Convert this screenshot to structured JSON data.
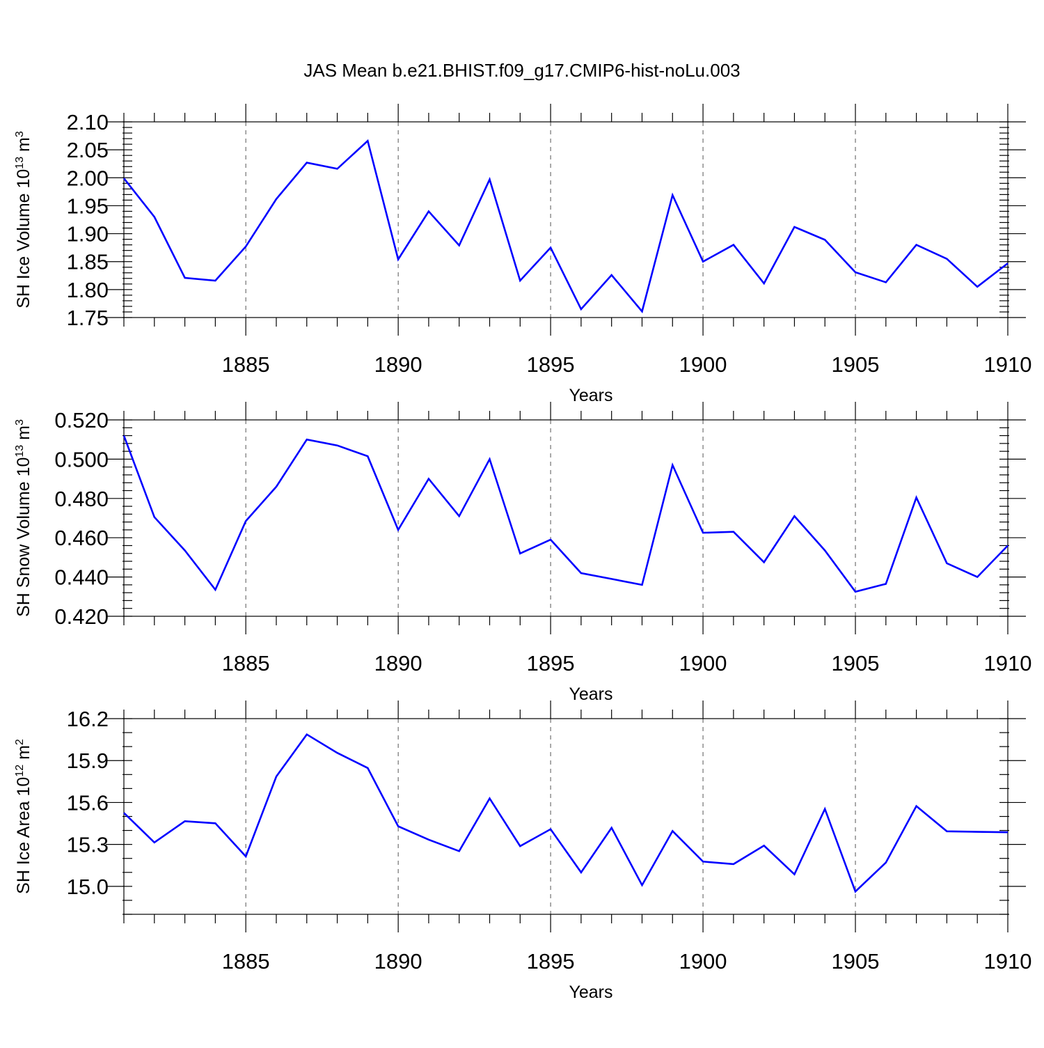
{
  "title": "JAS Mean b.e21.BHIST.f09_g17.CMIP6-hist-noLu.003",
  "colors": {
    "line": "#0000ff",
    "axis": "#000000",
    "grid": "#555555"
  },
  "chart_data": [
    {
      "type": "line",
      "title": "JAS Mean b.e21.BHIST.f09_g17.CMIP6-hist-noLu.003",
      "xlabel": "Years",
      "ylabel": {
        "base": "SH Ice Volume 10",
        "sup1": "13",
        "mid": " m",
        "sup2": "3"
      },
      "xlim": [
        1881,
        1910
      ],
      "ylim": [
        1.75,
        2.1
      ],
      "grid": "x-major-dashed",
      "x_ticks": [
        "1885",
        "1890",
        "1895",
        "1900",
        "1905",
        "1910"
      ],
      "x_tick_values": [
        1885,
        1890,
        1895,
        1900,
        1905,
        1910
      ],
      "y_ticks": [
        "1.75",
        "1.80",
        "1.85",
        "1.90",
        "1.95",
        "2.00",
        "2.05",
        "2.10"
      ],
      "y_tick_values": [
        1.75,
        1.8,
        1.85,
        1.9,
        1.95,
        2.0,
        2.05,
        2.1
      ],
      "y_minor_step": 0.01,
      "x": [
        1881,
        1882,
        1883,
        1884,
        1885,
        1886,
        1887,
        1888,
        1889,
        1890,
        1891,
        1892,
        1893,
        1894,
        1895,
        1896,
        1897,
        1898,
        1899,
        1900,
        1901,
        1902,
        1903,
        1904,
        1905,
        1906,
        1907,
        1908,
        1909,
        1910
      ],
      "series": [
        {
          "name": "SH Ice Volume",
          "values": [
            1.999,
            1.93,
            1.821,
            1.816,
            1.877,
            1.962,
            2.027,
            2.016,
            2.066,
            1.854,
            1.94,
            1.879,
            1.997,
            1.816,
            1.875,
            1.765,
            1.826,
            1.761,
            1.969,
            1.85,
            1.88,
            1.811,
            1.912,
            1.889,
            1.831,
            1.813,
            1.88,
            1.855,
            1.805,
            1.847
          ]
        }
      ]
    },
    {
      "type": "line",
      "title": "",
      "xlabel": "Years",
      "ylabel": {
        "base": "SH Snow Volume 10",
        "sup1": "13",
        "mid": " m",
        "sup2": "3"
      },
      "xlim": [
        1881,
        1910
      ],
      "ylim": [
        0.42,
        0.52
      ],
      "grid": "x-major-dashed",
      "x_ticks": [
        "1885",
        "1890",
        "1895",
        "1900",
        "1905",
        "1910"
      ],
      "x_tick_values": [
        1885,
        1890,
        1895,
        1900,
        1905,
        1910
      ],
      "y_ticks": [
        "0.420",
        "0.440",
        "0.460",
        "0.480",
        "0.500",
        "0.520"
      ],
      "y_tick_values": [
        0.42,
        0.44,
        0.46,
        0.48,
        0.5,
        0.52
      ],
      "y_minor_step": 0.004,
      "x": [
        1881,
        1882,
        1883,
        1884,
        1885,
        1886,
        1887,
        1888,
        1889,
        1890,
        1891,
        1892,
        1893,
        1894,
        1895,
        1896,
        1897,
        1898,
        1899,
        1900,
        1901,
        1902,
        1903,
        1904,
        1905,
        1906,
        1907,
        1908,
        1909,
        1910
      ],
      "series": [
        {
          "name": "SH Snow Volume",
          "values": [
            0.512,
            0.4705,
            0.4535,
            0.4335,
            0.4685,
            0.486,
            0.51,
            0.507,
            0.5015,
            0.464,
            0.49,
            0.471,
            0.5,
            0.452,
            0.459,
            0.442,
            0.439,
            0.436,
            0.497,
            0.4625,
            0.463,
            0.4475,
            0.471,
            0.4535,
            0.4325,
            0.4365,
            0.4805,
            0.447,
            0.44,
            0.456
          ]
        }
      ]
    },
    {
      "type": "line",
      "title": "",
      "xlabel": "Years",
      "ylabel": {
        "base": "SH Ice Area 10",
        "sup1": "12",
        "mid": " m",
        "sup2": "2"
      },
      "xlim": [
        1881,
        1910
      ],
      "ylim": [
        14.8,
        16.2
      ],
      "grid": "x-major-dashed",
      "x_ticks": [
        "1885",
        "1890",
        "1895",
        "1900",
        "1905",
        "1910"
      ],
      "x_tick_values": [
        1885,
        1890,
        1895,
        1900,
        1905,
        1910
      ],
      "y_ticks": [
        "15.0",
        "15.3",
        "15.6",
        "15.9",
        "16.2"
      ],
      "y_tick_values": [
        15.0,
        15.3,
        15.6,
        15.9,
        16.2
      ],
      "y_minor_step": 0.1,
      "x": [
        1881,
        1882,
        1883,
        1884,
        1885,
        1886,
        1887,
        1888,
        1889,
        1890,
        1891,
        1892,
        1893,
        1894,
        1895,
        1896,
        1897,
        1898,
        1899,
        1900,
        1901,
        1902,
        1903,
        1904,
        1905,
        1906,
        1907,
        1908,
        1909,
        1910
      ],
      "series": [
        {
          "name": "SH Ice Area",
          "values": [
            15.526,
            15.314,
            15.466,
            15.451,
            15.214,
            15.786,
            16.087,
            15.955,
            15.847,
            15.43,
            15.334,
            15.252,
            15.629,
            15.288,
            15.409,
            15.1,
            15.419,
            15.009,
            15.396,
            15.177,
            15.159,
            15.291,
            15.086,
            15.554,
            14.963,
            15.17,
            15.574,
            15.394,
            15.39,
            15.387
          ]
        }
      ]
    }
  ]
}
